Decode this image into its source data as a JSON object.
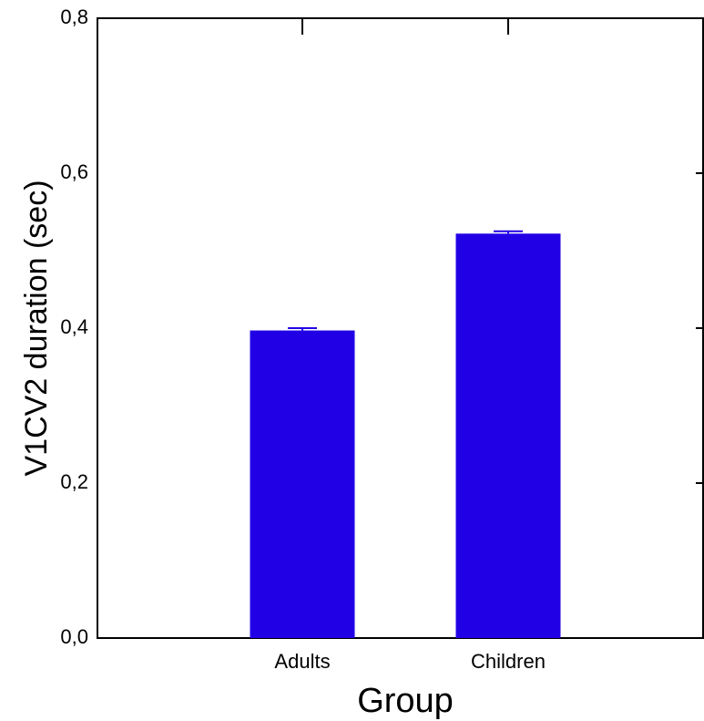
{
  "chart_data": {
    "type": "bar",
    "x_label": "Group",
    "y_label": "V1CV2 duration (sec)",
    "categories": [
      "Adults",
      "Children"
    ],
    "values": [
      0.397,
      0.522
    ],
    "errors": [
      0.003,
      0.003
    ],
    "color": "#2200e6",
    "ylim": [
      0,
      0.8
    ],
    "yticks": [
      {
        "value": 0,
        "label": "0,0"
      },
      {
        "value": 0.2,
        "label": "0,2"
      },
      {
        "value": 0.4,
        "label": "0,4"
      },
      {
        "value": 0.6,
        "label": "0,6"
      },
      {
        "value": 0.8,
        "label": "0,8"
      }
    ]
  }
}
